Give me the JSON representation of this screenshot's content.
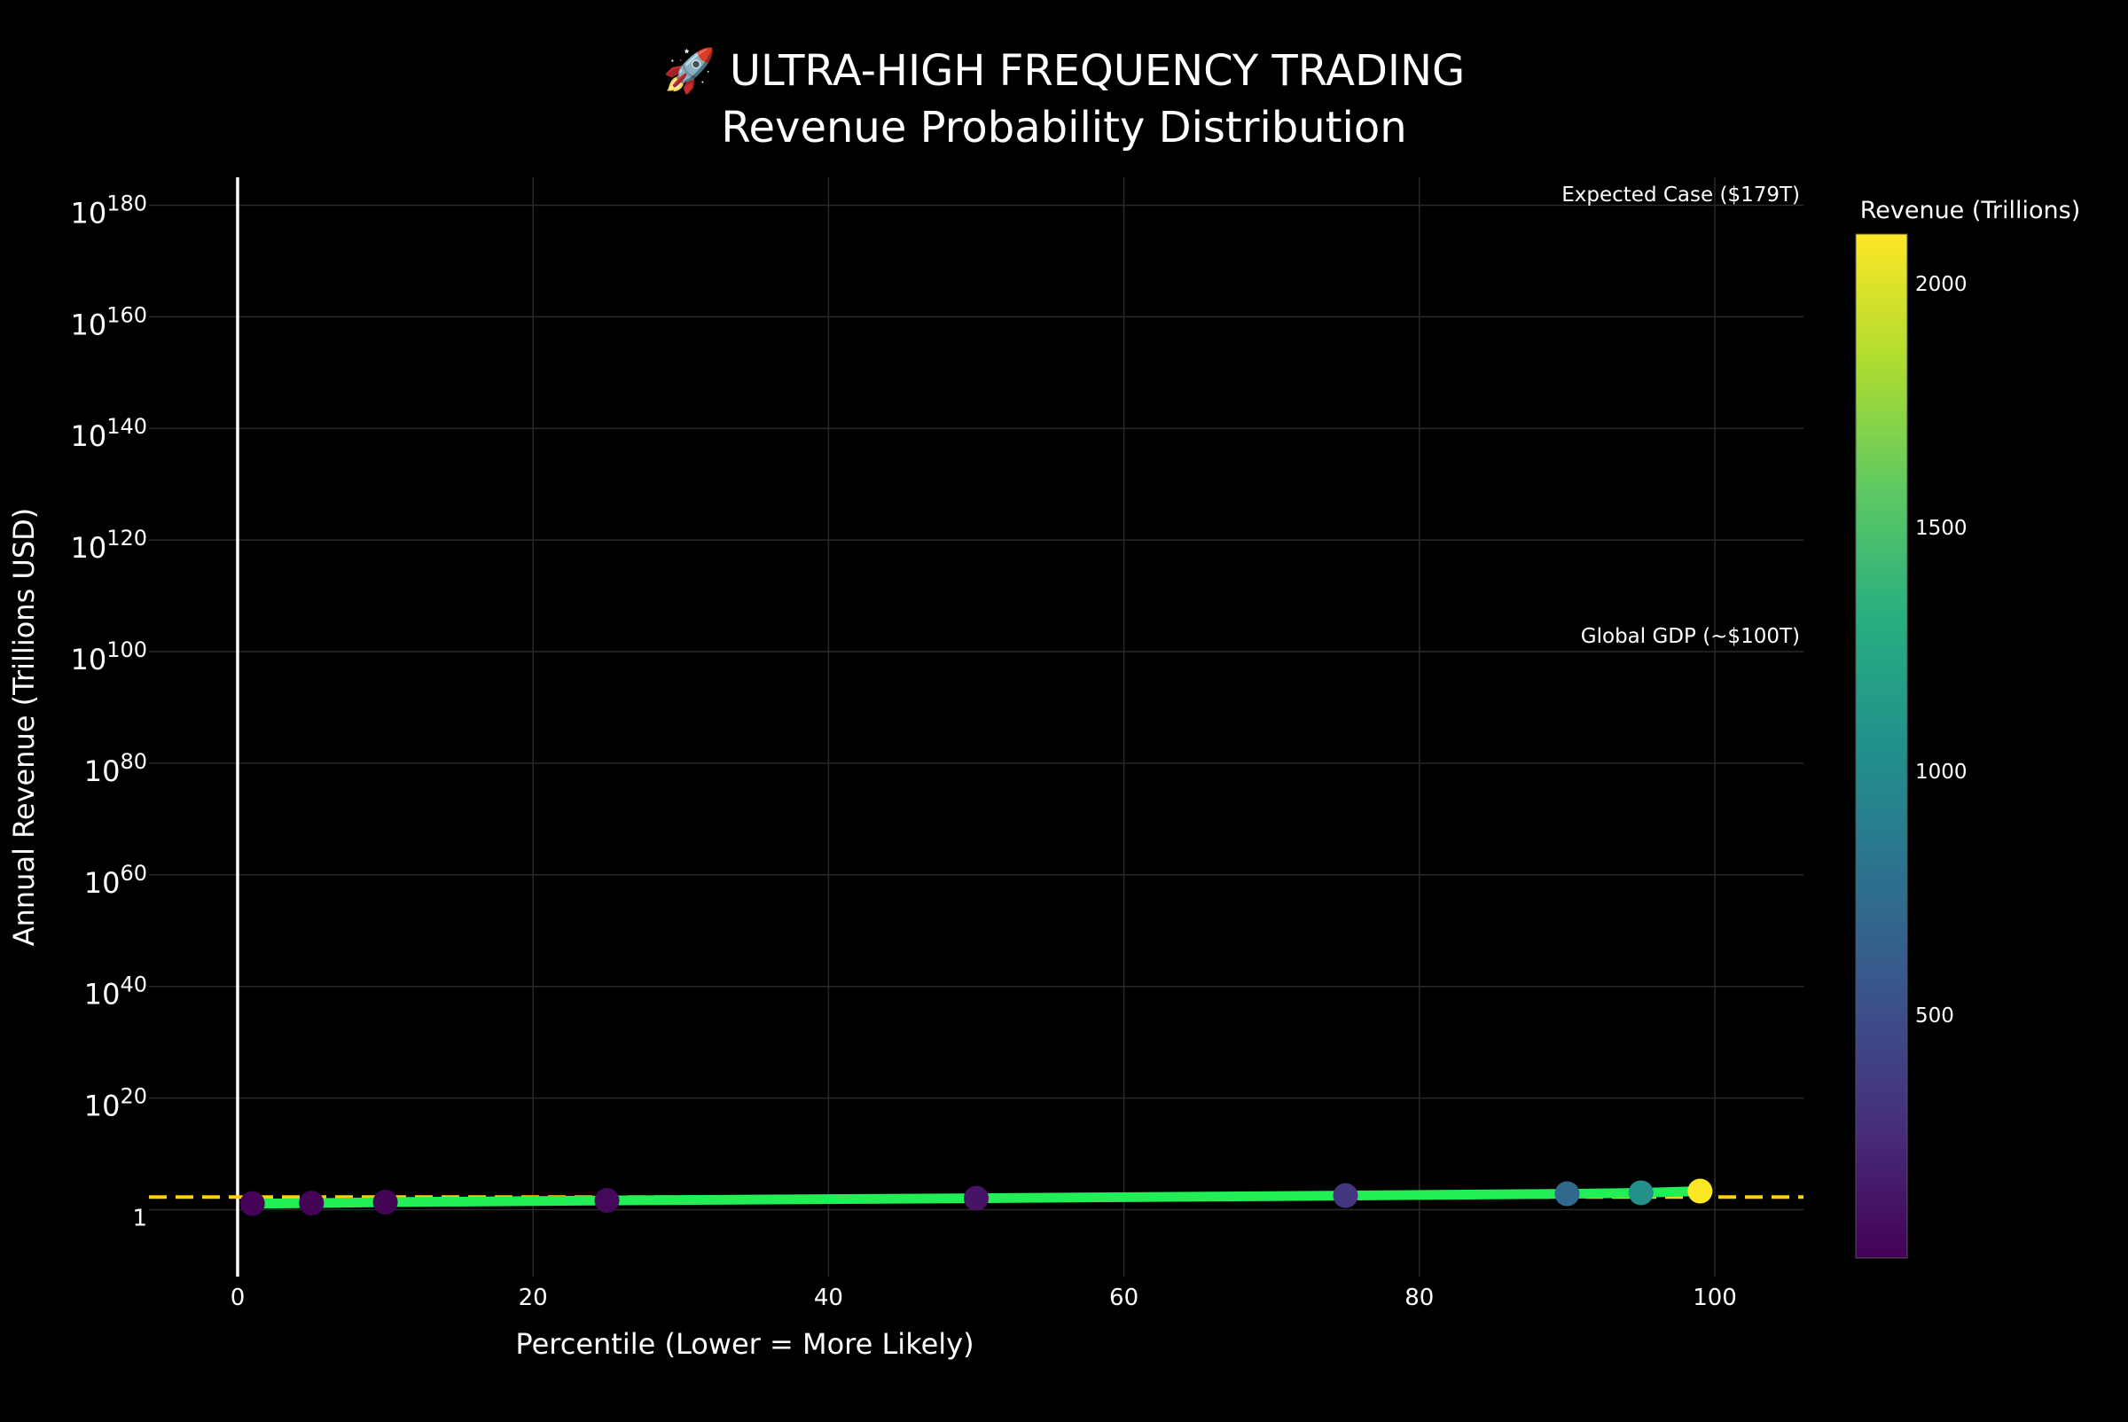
{
  "chart_data": {
    "type": "scatter",
    "title_line1": "🚀 ULTRA-HIGH FREQUENCY TRADING",
    "title_line2": "Revenue Probability Distribution",
    "xlabel": "Percentile (Lower = More Likely)",
    "ylabel": "Annual Revenue (Trillions USD)",
    "xlim": [
      -6,
      106
    ],
    "x_ticks": [
      0,
      20,
      40,
      60,
      80,
      100
    ],
    "y_scale": "log",
    "ylim_log10": [
      -12,
      185
    ],
    "y_ticks": [
      {
        "exp": 0,
        "base": "1",
        "sup": ""
      },
      {
        "exp": 20,
        "base": "10",
        "sup": "20"
      },
      {
        "exp": 40,
        "base": "10",
        "sup": "40"
      },
      {
        "exp": 60,
        "base": "10",
        "sup": "60"
      },
      {
        "exp": 80,
        "base": "10",
        "sup": "80"
      },
      {
        "exp": 100,
        "base": "10",
        "sup": "100"
      },
      {
        "exp": 120,
        "base": "10",
        "sup": "120"
      },
      {
        "exp": 140,
        "base": "10",
        "sup": "140"
      },
      {
        "exp": 160,
        "base": "10",
        "sup": "160"
      },
      {
        "exp": 180,
        "base": "10",
        "sup": "180"
      }
    ],
    "grid": true,
    "series": [
      {
        "x": [
          1,
          5,
          10,
          25,
          50,
          75,
          90,
          95,
          99
        ],
        "y": [
          12,
          15,
          22,
          45,
          110,
          330,
          700,
          1050,
          2100
        ]
      }
    ],
    "reference_line": {
      "y": 179,
      "label": "Expected Case ($179T)",
      "color": "#ffd000"
    },
    "annotation_gdp": {
      "label": "Global GDP (~$100T)"
    },
    "colorbar": {
      "title": "Revenue (Trillions)",
      "min": 0,
      "max": 2100,
      "ticks": [
        500,
        1000,
        1500,
        2000
      ],
      "colorscale": "viridis"
    },
    "line_color": "#22ee55",
    "colors": {
      "background": "#000000",
      "grid": "#2a2a2a",
      "text": "#ffffff"
    }
  }
}
